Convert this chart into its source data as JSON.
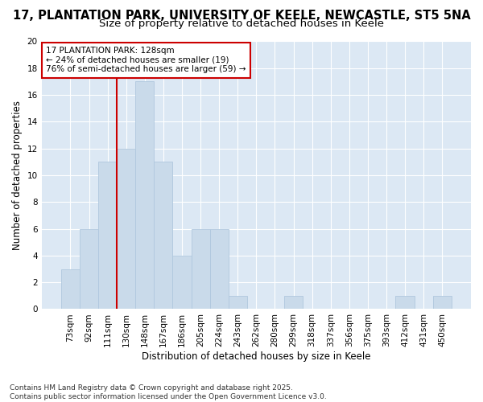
{
  "title1": "17, PLANTATION PARK, UNIVERSITY OF KEELE, NEWCASTLE, ST5 5NA",
  "title2": "Size of property relative to detached houses in Keele",
  "xlabel": "Distribution of detached houses by size in Keele",
  "ylabel": "Number of detached properties",
  "categories": [
    "73sqm",
    "92sqm",
    "111sqm",
    "130sqm",
    "148sqm",
    "167sqm",
    "186sqm",
    "205sqm",
    "224sqm",
    "243sqm",
    "262sqm",
    "280sqm",
    "299sqm",
    "318sqm",
    "337sqm",
    "356sqm",
    "375sqm",
    "393sqm",
    "412sqm",
    "431sqm",
    "450sqm"
  ],
  "values": [
    3,
    6,
    11,
    12,
    17,
    11,
    4,
    6,
    6,
    1,
    0,
    0,
    1,
    0,
    0,
    0,
    0,
    0,
    1,
    0,
    1
  ],
  "bar_color": "#c9daea",
  "bar_edgecolor": "#b0c8de",
  "vline_color": "#cc0000",
  "vline_x_index": 3,
  "annotation_text": "17 PLANTATION PARK: 128sqm\n← 24% of detached houses are smaller (19)\n76% of semi-detached houses are larger (59) →",
  "annotation_box_facecolor": "#ffffff",
  "annotation_box_edgecolor": "#cc0000",
  "ylim": [
    0,
    20
  ],
  "yticks": [
    0,
    2,
    4,
    6,
    8,
    10,
    12,
    14,
    16,
    18,
    20
  ],
  "background_color": "#dce8f4",
  "grid_color": "#ffffff",
  "footer": "Contains HM Land Registry data © Crown copyright and database right 2025.\nContains public sector information licensed under the Open Government Licence v3.0.",
  "title1_fontsize": 10.5,
  "title2_fontsize": 9.5,
  "axis_label_fontsize": 8.5,
  "tick_fontsize": 7.5,
  "annotation_fontsize": 7.5,
  "footer_fontsize": 6.5
}
